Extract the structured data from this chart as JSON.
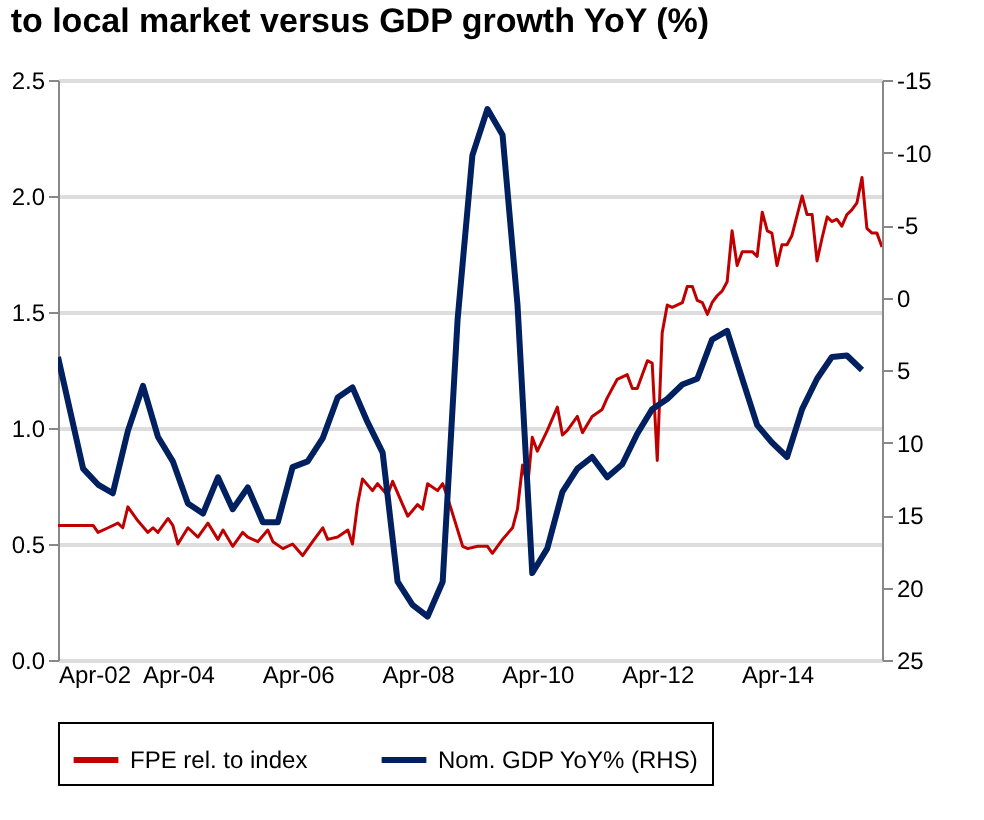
{
  "chart_data": {
    "type": "line",
    "title": "to local market versus GDP growth YoY (%)",
    "xlim": [
      "2002-04",
      "2016-01"
    ],
    "xticks": [
      {
        "value": "2002-04",
        "label": "Apr-02"
      },
      {
        "value": "2004-04",
        "label": "Apr-04"
      },
      {
        "value": "2006-04",
        "label": "Apr-06"
      },
      {
        "value": "2008-04",
        "label": "Apr-08"
      },
      {
        "value": "2010-04",
        "label": "Apr-10"
      },
      {
        "value": "2012-04",
        "label": "Apr-12"
      },
      {
        "value": "2014-04",
        "label": "Apr-14"
      }
    ],
    "ylim": [
      0,
      2.5
    ],
    "yticks": [
      {
        "value": 0,
        "label": "0.0"
      },
      0.5,
      {
        "value": 1,
        "label": "1.0"
      },
      1.5,
      {
        "value": 2,
        "label": "2.0"
      },
      2.5
    ],
    "y2lim": [
      25,
      -15
    ],
    "y2ticks": [
      -15,
      -10,
      -5,
      0,
      5,
      10,
      15,
      20,
      25
    ],
    "grid": "y",
    "legend": "bottom",
    "series": [
      {
        "name": "FPE rel. to index",
        "color": "#c00000",
        "x": [
          "2002-04",
          "2002-11",
          "2002-12",
          "2003-02",
          "2003-04",
          "2003-05",
          "2003-06",
          "2003-08",
          "2003-10",
          "2003-11",
          "2003-12",
          "2004-02",
          "2004-03",
          "2004-04",
          "2004-06",
          "2004-08",
          "2004-10",
          "2004-12",
          "2005-01",
          "2005-03",
          "2005-05",
          "2005-06",
          "2005-08",
          "2005-10",
          "2005-11",
          "2006-01",
          "2006-03",
          "2006-05",
          "2006-07",
          "2006-09",
          "2006-10",
          "2006-12",
          "2007-02",
          "2007-03",
          "2007-04",
          "2007-05",
          "2007-07",
          "2007-08",
          "2007-10",
          "2007-11",
          "2008-01",
          "2008-02",
          "2008-04",
          "2008-05",
          "2008-06",
          "2008-08",
          "2008-09",
          "2008-10",
          "2009-01",
          "2009-02",
          "2009-04",
          "2009-06",
          "2009-07",
          "2009-09",
          "2009-11",
          "2009-12",
          "2010-01",
          "2010-02",
          "2010-03",
          "2010-04",
          "2010-06",
          "2010-08",
          "2010-09",
          "2010-10",
          "2010-12",
          "2011-01",
          "2011-03",
          "2011-05",
          "2011-06",
          "2011-08",
          "2011-10",
          "2011-11",
          "2011-12",
          "2012-02",
          "2012-03",
          "2012-04",
          "2012-05",
          "2012-06",
          "2012-07",
          "2012-09",
          "2012-10",
          "2012-11",
          "2012-12",
          "2013-01",
          "2013-02",
          "2013-03",
          "2013-04",
          "2013-05",
          "2013-06",
          "2013-07",
          "2013-08",
          "2013-09",
          "2013-11",
          "2013-12",
          "2014-01",
          "2014-02",
          "2014-03",
          "2014-04",
          "2014-05",
          "2014-06",
          "2014-07",
          "2014-09",
          "2014-10",
          "2014-11",
          "2014-12",
          "2015-01",
          "2015-02",
          "2015-03",
          "2015-04",
          "2015-05",
          "2015-06",
          "2015-07",
          "2015-08",
          "2015-09",
          "2015-10",
          "2015-11",
          "2015-12",
          "2016-01"
        ],
        "values": [
          0.58,
          0.58,
          0.55,
          0.57,
          0.59,
          0.57,
          0.66,
          0.6,
          0.55,
          0.57,
          0.55,
          0.61,
          0.58,
          0.5,
          0.57,
          0.53,
          0.59,
          0.52,
          0.56,
          0.49,
          0.55,
          0.53,
          0.51,
          0.56,
          0.51,
          0.48,
          0.5,
          0.45,
          0.51,
          0.57,
          0.52,
          0.53,
          0.56,
          0.5,
          0.67,
          0.78,
          0.73,
          0.76,
          0.71,
          0.77,
          0.67,
          0.62,
          0.67,
          0.65,
          0.76,
          0.73,
          0.76,
          0.7,
          0.49,
          0.48,
          0.49,
          0.49,
          0.46,
          0.52,
          0.57,
          0.65,
          0.84,
          0.75,
          0.96,
          0.9,
          0.99,
          1.09,
          0.97,
          0.99,
          1.05,
          0.98,
          1.05,
          1.08,
          1.13,
          1.21,
          1.23,
          1.17,
          1.17,
          1.29,
          1.28,
          0.86,
          1.41,
          1.53,
          1.52,
          1.54,
          1.61,
          1.61,
          1.55,
          1.54,
          1.49,
          1.54,
          1.57,
          1.59,
          1.63,
          1.85,
          1.7,
          1.76,
          1.76,
          1.74,
          1.93,
          1.85,
          1.84,
          1.7,
          1.79,
          1.79,
          1.83,
          2.0,
          1.92,
          1.92,
          1.72,
          1.82,
          1.91,
          1.89,
          1.9,
          1.87,
          1.92,
          1.94,
          1.97,
          2.08,
          1.86,
          1.84,
          1.84,
          1.78
        ]
      },
      {
        "name": "Nom. GDP YoY% (RHS)",
        "color": "#002060",
        "axis": "y2",
        "x": [
          "2002-04",
          "2002-09",
          "2002-12",
          "2003-03",
          "2003-06",
          "2003-09",
          "2003-12",
          "2004-03",
          "2004-06",
          "2004-09",
          "2004-12",
          "2005-03",
          "2005-06",
          "2005-09",
          "2005-12",
          "2006-03",
          "2006-06",
          "2006-09",
          "2006-12",
          "2007-03",
          "2007-06",
          "2007-09",
          "2007-12",
          "2008-03",
          "2008-06",
          "2008-09",
          "2008-12",
          "2009-03",
          "2009-06",
          "2009-09",
          "2009-12",
          "2010-03",
          "2010-06",
          "2010-09",
          "2010-12",
          "2011-03",
          "2011-06",
          "2011-09",
          "2011-12",
          "2012-03",
          "2012-06",
          "2012-09",
          "2012-12",
          "2013-03",
          "2013-06",
          "2013-09",
          "2013-12",
          "2014-03",
          "2014-06",
          "2014-09",
          "2014-12",
          "2015-03",
          "2015-06",
          "2015-09"
        ],
        "values": [
          4.1,
          11.8,
          12.9,
          13.5,
          9.2,
          6.1,
          9.6,
          11.3,
          14.2,
          14.9,
          12.4,
          14.6,
          13.1,
          15.5,
          15.5,
          11.7,
          11.3,
          9.7,
          6.9,
          6.2,
          8.6,
          10.7,
          19.6,
          21.2,
          22.0,
          19.6,
          1.5,
          -9.8,
          -13.0,
          -11.2,
          0.5,
          19.0,
          17.3,
          13.4,
          11.8,
          11.0,
          12.4,
          11.5,
          9.4,
          7.7,
          7.0,
          6.0,
          5.6,
          2.9,
          2.3,
          5.6,
          8.8,
          10.0,
          11.0,
          7.7,
          5.6,
          4.1,
          4.0,
          5.0
        ]
      }
    ]
  }
}
